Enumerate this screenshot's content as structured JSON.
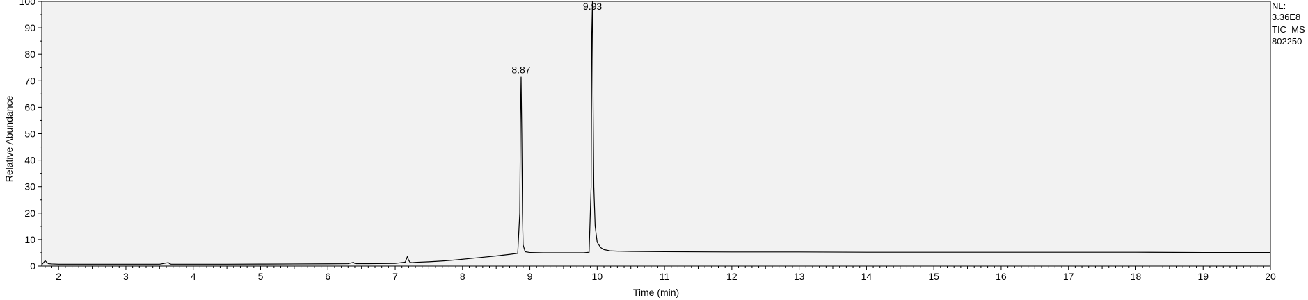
{
  "chart_data": {
    "type": "line",
    "title": "",
    "xlabel": "Time (min)",
    "ylabel": "Relative Abundance",
    "xlim": [
      1.75,
      20.0
    ],
    "ylim": [
      0,
      100
    ],
    "x_ticks": [
      "2",
      "3",
      "4",
      "5",
      "6",
      "7",
      "8",
      "9",
      "10",
      "11",
      "12",
      "13",
      "14",
      "15",
      "16",
      "17",
      "18",
      "19",
      "20"
    ],
    "y_ticks": [
      "0",
      "10",
      "20",
      "30",
      "40",
      "50",
      "60",
      "70",
      "80",
      "90",
      "100"
    ],
    "grid": false,
    "legend": "none",
    "plot_background": "#f2f2f2",
    "line_color": "#000000",
    "info_box": [
      "NL:",
      "3.36E8",
      "TIC  MS",
      "802250"
    ],
    "peak_labels": [
      {
        "text": "8.87",
        "x": 8.87,
        "y": 71.5
      },
      {
        "text": "9.93",
        "x": 9.93,
        "y": 100
      }
    ],
    "series": [
      {
        "x": [
          1.75,
          1.8,
          1.82,
          1.85,
          1.9,
          2.0,
          2.5,
          3.0,
          3.5,
          3.63,
          3.65,
          3.67,
          3.8,
          4.5,
          5.0,
          5.5,
          6.0,
          6.3,
          6.38,
          6.4,
          6.42,
          6.6,
          7.0,
          7.15,
          7.18,
          7.2,
          7.22,
          7.25,
          7.3,
          7.5,
          7.7,
          7.9,
          8.1,
          8.3,
          8.5,
          8.7,
          8.82,
          8.85,
          8.86,
          8.87,
          8.88,
          8.89,
          8.9,
          8.93,
          9.0,
          9.2,
          9.5,
          9.8,
          9.88,
          9.91,
          9.92,
          9.93,
          9.94,
          9.95,
          9.97,
          10.0,
          10.05,
          10.1,
          10.2,
          10.3,
          10.5,
          11.0,
          12.0,
          13.0,
          14.0,
          15.0,
          16.0,
          17.0,
          18.0,
          19.0,
          20.0
        ],
        "values": [
          0.5,
          2.0,
          1.5,
          0.9,
          0.8,
          0.7,
          0.7,
          0.7,
          0.7,
          1.3,
          0.9,
          0.7,
          0.7,
          0.7,
          0.75,
          0.8,
          0.85,
          0.9,
          1.4,
          1.0,
          0.9,
          0.9,
          1.0,
          1.5,
          3.5,
          2.2,
          1.4,
          1.3,
          1.4,
          1.6,
          1.9,
          2.3,
          2.8,
          3.3,
          3.8,
          4.4,
          4.8,
          20.0,
          54.0,
          71.5,
          50.0,
          20.0,
          8.0,
          5.4,
          5.1,
          5.0,
          5.0,
          5.0,
          5.2,
          30.0,
          88.0,
          100.0,
          60.0,
          30.0,
          15.0,
          9.0,
          7.0,
          6.2,
          5.7,
          5.6,
          5.5,
          5.4,
          5.3,
          5.3,
          5.2,
          5.2,
          5.2,
          5.2,
          5.2,
          5.1,
          5.1
        ]
      }
    ]
  }
}
